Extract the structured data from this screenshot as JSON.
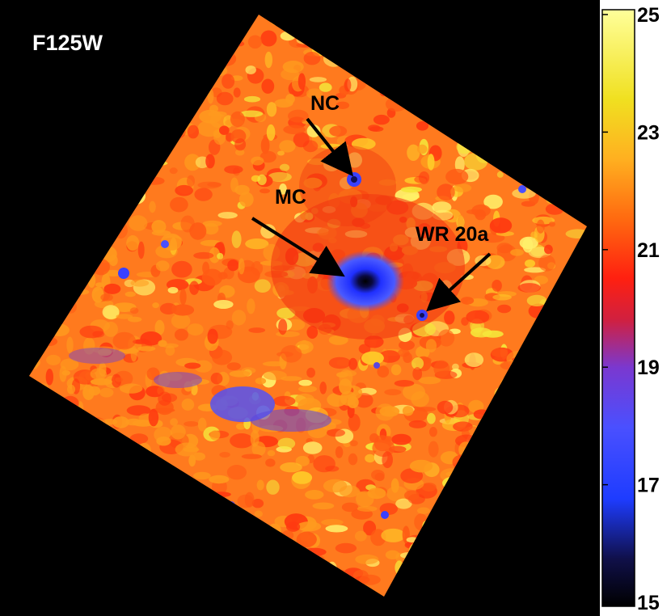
{
  "image": {
    "filter": "F125W",
    "annotations": [
      {
        "id": "nc",
        "label": "NC"
      },
      {
        "id": "mc",
        "label": "MC"
      },
      {
        "id": "wr20a",
        "label": "WR 20a"
      }
    ]
  },
  "colorbar": {
    "range": [
      15,
      25
    ],
    "ticks": [
      "25",
      "23",
      "21",
      "19",
      "17",
      "15"
    ],
    "colormap": [
      "#000000",
      "#1a1a66",
      "#2a3cff",
      "#4a5aff",
      "#7a3ad8",
      "#c02a70",
      "#ff2a10",
      "#ff5a10",
      "#ff9a18",
      "#ffd020",
      "#f0f040",
      "#ffff9a"
    ]
  },
  "colors": {
    "background": "#000000",
    "field_base": "#ff6a1a",
    "arrow": "#000000"
  }
}
